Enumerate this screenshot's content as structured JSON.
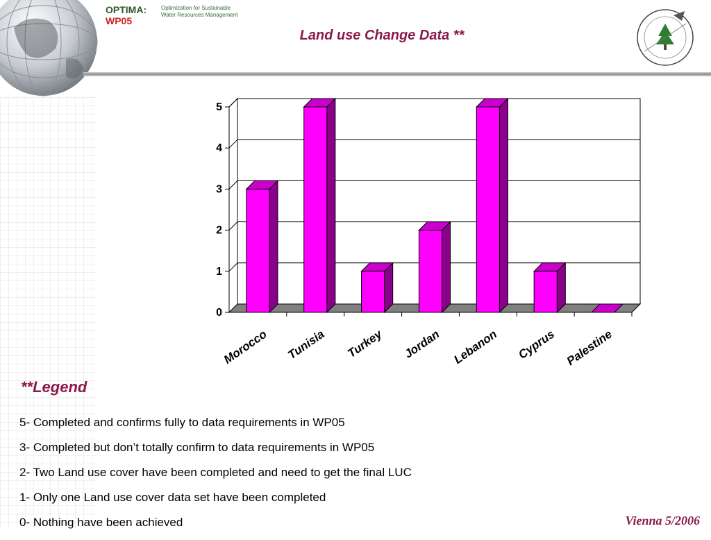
{
  "header": {
    "brand_name": "OPTIMA:",
    "brand_wp": "WP05",
    "brand_subtitle_line1": "Optimization for Sustainable",
    "brand_subtitle_line2": "Water Resources Management",
    "title": "Land use Change Data **",
    "logo_icon": "globe-icon",
    "seal_icon": "national-center-remote-sensing-seal"
  },
  "colors": {
    "bar_front": "#ff00ff",
    "bar_side": "#8b008b",
    "bar_top": "#cc00cc",
    "floor": "#808080",
    "title": "#8b1a4a",
    "brand_red": "#cc2222",
    "brand_green": "#2a5a2a"
  },
  "chart_data": {
    "type": "bar",
    "categories": [
      "Morocco",
      "Tunisia",
      "Turkey",
      "Jordan",
      "Lebanon",
      "Cyprus",
      "Palestine"
    ],
    "values": [
      3,
      5,
      1,
      2,
      5,
      1,
      0
    ],
    "yticks": [
      0,
      1,
      2,
      3,
      4,
      5
    ],
    "ylim": [
      0,
      5
    ],
    "grid": true,
    "title": "",
    "xlabel": "",
    "ylabel": "",
    "legend": "none"
  },
  "legend": {
    "title": "**Legend",
    "items": [
      "5- Completed and confirms fully to data requirements in WP05",
      "3- Completed but don’t totally confirm to data requirements in WP05",
      "2- Two Land use cover have been completed and need to get the final LUC",
      "1- Only one Land use cover data set have been completed",
      "0- Nothing have been achieved"
    ]
  },
  "footer": {
    "date": "Vienna 5/2006"
  }
}
